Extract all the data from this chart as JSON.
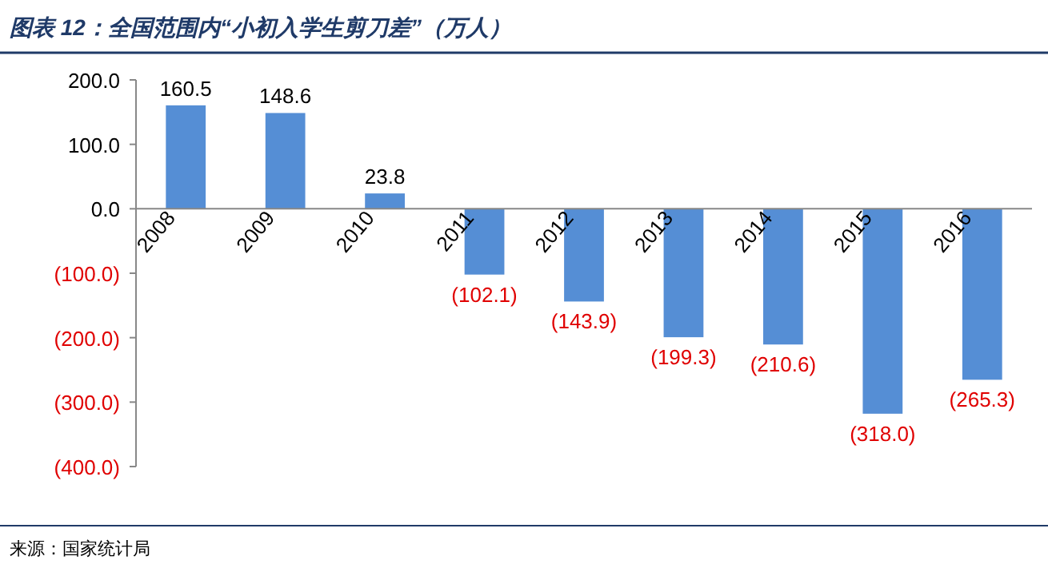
{
  "chart_data": {
    "type": "bar",
    "title": "图表 12：全国范围内“小初入学生剪刀差”（万人）",
    "categories": [
      "2008",
      "2009",
      "2010",
      "2011",
      "2012",
      "2013",
      "2014",
      "2015",
      "2016"
    ],
    "values": [
      160.5,
      148.6,
      23.8,
      -102.1,
      -143.9,
      -199.3,
      -210.6,
      -318.0,
      -265.3
    ],
    "value_labels": [
      "160.5",
      "148.6",
      "23.8",
      "(102.1)",
      "(143.9)",
      "(199.3)",
      "(210.6)",
      "(318.0)",
      "(265.3)"
    ],
    "color": "#558ed5",
    "ylim": [
      -400,
      200
    ],
    "yticks": [
      {
        "value": 200,
        "label": "200.0"
      },
      {
        "value": 100,
        "label": "100.0"
      },
      {
        "value": 0,
        "label": "0.0"
      },
      {
        "value": -100,
        "label": "(100.0)"
      },
      {
        "value": -200,
        "label": "(200.0)"
      },
      {
        "value": -300,
        "label": "(300.0)"
      },
      {
        "value": -400,
        "label": "(400.0)"
      }
    ],
    "grid": false,
    "annotations": [
      "来源：国家统计局"
    ]
  }
}
